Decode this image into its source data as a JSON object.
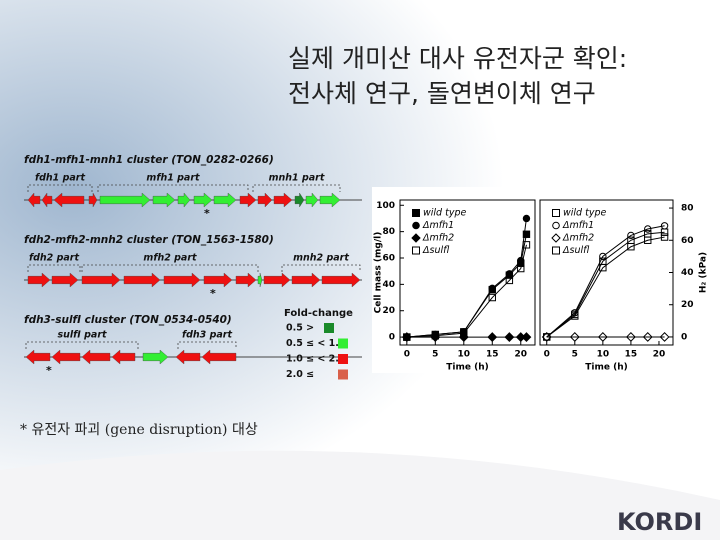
{
  "slide": {
    "title": [
      "실제 개미산 대사 유전자군 확인:",
      "전사체 연구, 돌연변이체 연구"
    ],
    "clusters": [
      {
        "name": "fdh1-mfh1-mnh1 cluster (TON_0282-0266)",
        "parts": [
          "fdh1 part",
          "mfh1 part",
          "mnh1 part"
        ],
        "star": "*"
      },
      {
        "name": "fdh2-mfh2-mnh2 cluster (TON_1563-1580)",
        "parts": [
          "fdh2 part",
          "mfh2 part",
          "mnh2 part"
        ],
        "star": "*"
      },
      {
        "name": "fdh3-sulfI cluster (TON_0534-0540)",
        "parts": [
          "sulfI part",
          "fdh3 part"
        ],
        "star": "*"
      }
    ],
    "fold_change": {
      "title": "Fold-change",
      "items": [
        {
          "label": "0.5 >",
          "color": "#1a8a2a"
        },
        {
          "label": "0.5 ≤ < 1.0",
          "color": "#33ee33"
        },
        {
          "label": "1.0 ≤ < 2.0",
          "color": "#ee1111"
        },
        {
          "label": "2.0 ≤",
          "color": "#d9604a"
        }
      ]
    },
    "footnote": "* 유전자 파괴 (gene disruption) 대상",
    "logo": "KORDI"
  },
  "chart_data": [
    {
      "type": "line",
      "xlabel": "Time (h)",
      "ylabel": "Cell mass (mg/l)",
      "yaxis": "left",
      "x": [
        0,
        5,
        10,
        15,
        18,
        20,
        21
      ],
      "xlim": [
        -1.2,
        22.5
      ],
      "xticks": [
        0,
        5,
        10,
        15,
        20
      ],
      "ylim": [
        -6,
        104
      ],
      "yticks": [
        0,
        20,
        40,
        60,
        80,
        100
      ],
      "series": [
        {
          "name": "wild type",
          "marker": "square",
          "fill": "#000000",
          "color": "#000000",
          "values": [
            0,
            2,
            4,
            36,
            47,
            56,
            78
          ]
        },
        {
          "name": "Δmfh1",
          "marker": "circle",
          "fill": "#000000",
          "color": "#000000",
          "values": [
            0,
            2,
            4,
            37,
            48,
            58,
            90
          ]
        },
        {
          "name": "Δmfh2",
          "marker": "diamond",
          "fill": "#000000",
          "color": "#000000",
          "values": [
            0,
            0,
            0,
            0,
            0,
            0,
            0
          ]
        },
        {
          "name": "Δsulfl",
          "marker": "square",
          "fill": "none",
          "color": "#000000",
          "values": [
            0,
            1,
            3,
            30,
            43,
            52,
            70
          ]
        }
      ]
    },
    {
      "type": "line",
      "xlabel": "Time (h)",
      "ylabel": "H₂ (kPa)",
      "yaxis": "right",
      "x": [
        0,
        5,
        10,
        15,
        18,
        21
      ],
      "xlim": [
        -1.2,
        22.5
      ],
      "xticks": [
        0,
        5,
        10,
        15,
        20
      ],
      "ylim": [
        -5,
        85
      ],
      "yticks": [
        0,
        20,
        40,
        60,
        80
      ],
      "series": [
        {
          "name": "wild type",
          "marker": "square",
          "fill": "none",
          "color": "#000000",
          "values": [
            0,
            14,
            47,
            60,
            64,
            65
          ]
        },
        {
          "name": "Δmfh1",
          "marker": "circle",
          "fill": "none",
          "color": "#000000",
          "values": [
            0,
            15,
            50,
            63,
            67,
            69
          ]
        },
        {
          "name": "Δmfh2",
          "marker": "diamond",
          "fill": "none",
          "color": "#000000",
          "values": [
            0,
            0,
            0,
            0,
            0,
            0
          ]
        },
        {
          "name": "Δsulfl",
          "marker": "square",
          "fill": "none",
          "color": "#000000",
          "values": [
            0,
            13,
            43,
            56,
            60,
            62
          ]
        }
      ]
    }
  ]
}
